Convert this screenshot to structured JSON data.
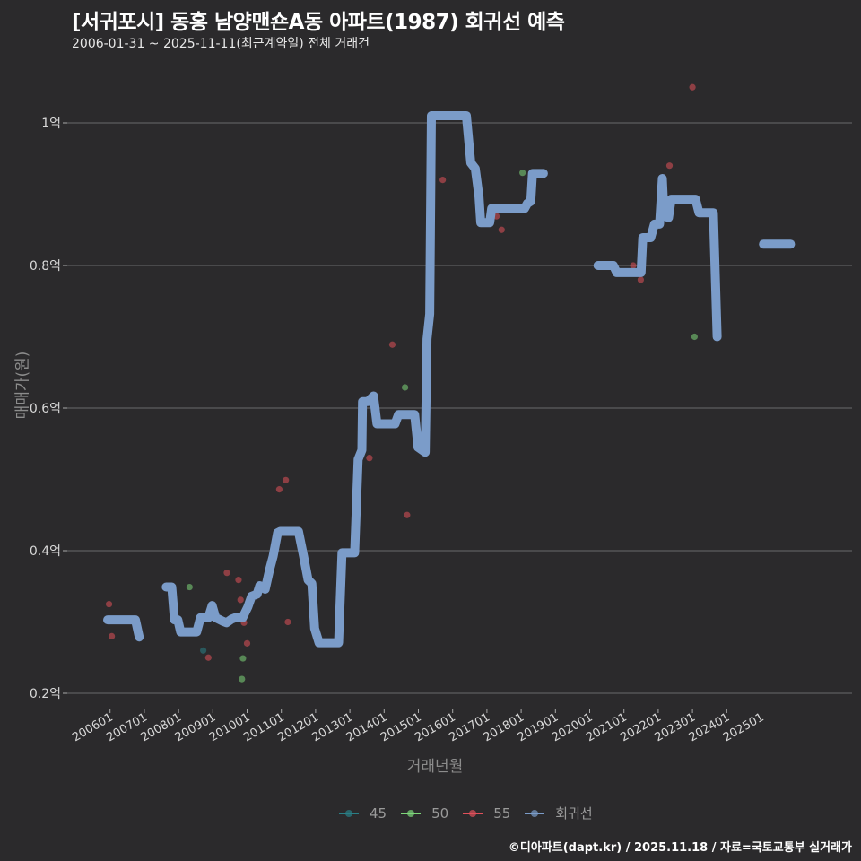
{
  "header": {
    "title": "[서귀포시] 동홍 남양맨숀A동 아파트(1987) 회귀선 예측",
    "subtitle": "2006-01-31 ~ 2025-11-11(최근계약일) 전체 거래건"
  },
  "axes": {
    "ylabel": "매매가(원)",
    "xlabel": "거래년월"
  },
  "legend": [
    {
      "label": "45",
      "color": "#2a7f86"
    },
    {
      "label": "50",
      "color": "#7ed67a"
    },
    {
      "label": "55",
      "color": "#e0505a"
    },
    {
      "label": "회귀선",
      "color": "#7b9cc9"
    }
  ],
  "footer": "©디아파트(dapt.kr) / 2025.11.18 / 자료=국토교통부 실거래가",
  "chart_data": {
    "type": "line",
    "title": "[서귀포시] 동홍 남양맨숀A동 아파트(1987) 회귀선 예측",
    "subtitle": "2006-01-31 ~ 2025-11-11(최근계약일) 전체 거래건",
    "xlabel": "거래년월",
    "ylabel": "매매가(원)",
    "x_ticks": [
      "200601",
      "200701",
      "200801",
      "200901",
      "201001",
      "201101",
      "201201",
      "201301",
      "201401",
      "201501",
      "201601",
      "201701",
      "201801",
      "201901",
      "202001",
      "202101",
      "202201",
      "202301",
      "202401",
      "202501"
    ],
    "y_ticks": [
      "0.2억",
      "0.4억",
      "0.6억",
      "0.8억",
      "1억"
    ],
    "y_tick_values": [
      0.2,
      0.4,
      0.6,
      0.8,
      1.0
    ],
    "ylim": [
      0.18,
      1.1
    ],
    "xlim": [
      2005.2,
      2027.7
    ],
    "grid": "horizontal",
    "legend_position": "bottom",
    "series": [
      {
        "name": "회귀선",
        "color": "#7b9cc9",
        "segments": [
          [
            [
              2005.93,
              0.303
            ],
            [
              2006.74,
              0.303
            ],
            [
              2006.85,
              0.279
            ]
          ],
          [
            [
              2007.64,
              0.349
            ],
            [
              2007.8,
              0.349
            ],
            [
              2007.88,
              0.303
            ],
            [
              2007.98,
              0.303
            ],
            [
              2008.06,
              0.286
            ],
            [
              2008.53,
              0.286
            ],
            [
              2008.64,
              0.306
            ],
            [
              2008.87,
              0.306
            ],
            [
              2008.98,
              0.323
            ],
            [
              2009.08,
              0.306
            ],
            [
              2009.29,
              0.301
            ],
            [
              2009.4,
              0.299
            ],
            [
              2009.55,
              0.304
            ],
            [
              2009.66,
              0.306
            ],
            [
              2009.87,
              0.306
            ],
            [
              2010.02,
              0.321
            ],
            [
              2010.13,
              0.336
            ],
            [
              2010.29,
              0.339
            ],
            [
              2010.37,
              0.351
            ],
            [
              2010.53,
              0.346
            ],
            [
              2010.66,
              0.374
            ],
            [
              2010.76,
              0.392
            ],
            [
              2010.89,
              0.425
            ],
            [
              2010.97,
              0.427
            ],
            [
              2011.5,
              0.427
            ],
            [
              2011.65,
              0.392
            ],
            [
              2011.78,
              0.359
            ],
            [
              2011.89,
              0.354
            ],
            [
              2011.97,
              0.291
            ],
            [
              2012.1,
              0.271
            ],
            [
              2012.67,
              0.271
            ],
            [
              2012.77,
              0.397
            ],
            [
              2013.14,
              0.397
            ],
            [
              2013.24,
              0.528
            ],
            [
              2013.35,
              0.541
            ],
            [
              2013.37,
              0.609
            ],
            [
              2013.53,
              0.609
            ],
            [
              2013.69,
              0.617
            ],
            [
              2013.79,
              0.578
            ],
            [
              2014.32,
              0.578
            ],
            [
              2014.42,
              0.591
            ],
            [
              2014.89,
              0.591
            ],
            [
              2014.99,
              0.545
            ],
            [
              2015.2,
              0.538
            ],
            [
              2015.25,
              0.697
            ],
            [
              2015.33,
              0.732
            ],
            [
              2015.38,
              1.01
            ],
            [
              2016.4,
              1.01
            ],
            [
              2016.53,
              0.944
            ],
            [
              2016.66,
              0.936
            ],
            [
              2016.77,
              0.896
            ],
            [
              2016.82,
              0.86
            ],
            [
              2017.08,
              0.86
            ],
            [
              2017.14,
              0.88
            ],
            [
              2018.1,
              0.88
            ],
            [
              2018.18,
              0.887
            ],
            [
              2018.28,
              0.89
            ],
            [
              2018.33,
              0.929
            ],
            [
              2018.65,
              0.929
            ]
          ],
          [
            [
              2020.24,
              0.8
            ],
            [
              2020.69,
              0.8
            ],
            [
              2020.79,
              0.79
            ],
            [
              2021.5,
              0.79
            ],
            [
              2021.55,
              0.839
            ],
            [
              2021.78,
              0.839
            ],
            [
              2021.89,
              0.858
            ],
            [
              2022.04,
              0.858
            ],
            [
              2022.12,
              0.922
            ],
            [
              2022.17,
              0.87
            ],
            [
              2022.3,
              0.867
            ],
            [
              2022.38,
              0.893
            ],
            [
              2023.09,
              0.893
            ],
            [
              2023.19,
              0.874
            ],
            [
              2023.61,
              0.874
            ],
            [
              2023.72,
              0.7
            ]
          ],
          [
            [
              2025.07,
              0.83
            ],
            [
              2025.86,
              0.83
            ]
          ]
        ]
      },
      {
        "name": "45",
        "color": "#2a7f86",
        "points": [
          [
            2008.72,
            0.26
          ]
        ]
      },
      {
        "name": "50",
        "color": "#7ed67a",
        "points": [
          [
            2008.32,
            0.349
          ],
          [
            2009.88,
            0.249
          ],
          [
            2009.85,
            0.22
          ],
          [
            2014.61,
            0.629
          ],
          [
            2018.04,
            0.93
          ],
          [
            2023.06,
            0.7
          ]
        ]
      },
      {
        "name": "55",
        "color": "#e0505a",
        "points": [
          [
            2005.97,
            0.325
          ],
          [
            2006.05,
            0.28
          ],
          [
            2008.87,
            0.25
          ],
          [
            2009.41,
            0.369
          ],
          [
            2009.75,
            0.359
          ],
          [
            2009.81,
            0.331
          ],
          [
            2009.91,
            0.299
          ],
          [
            2010.0,
            0.27
          ],
          [
            2010.94,
            0.486
          ],
          [
            2011.13,
            0.499
          ],
          [
            2011.19,
            0.3
          ],
          [
            2013.57,
            0.53
          ],
          [
            2014.24,
            0.689
          ],
          [
            2014.67,
            0.45
          ],
          [
            2015.71,
            0.92
          ],
          [
            2017.28,
            0.869
          ],
          [
            2017.43,
            0.85
          ],
          [
            2021.27,
            0.8
          ],
          [
            2021.49,
            0.78
          ],
          [
            2022.33,
            0.94
          ],
          [
            2023.0,
            1.05
          ]
        ]
      }
    ]
  }
}
